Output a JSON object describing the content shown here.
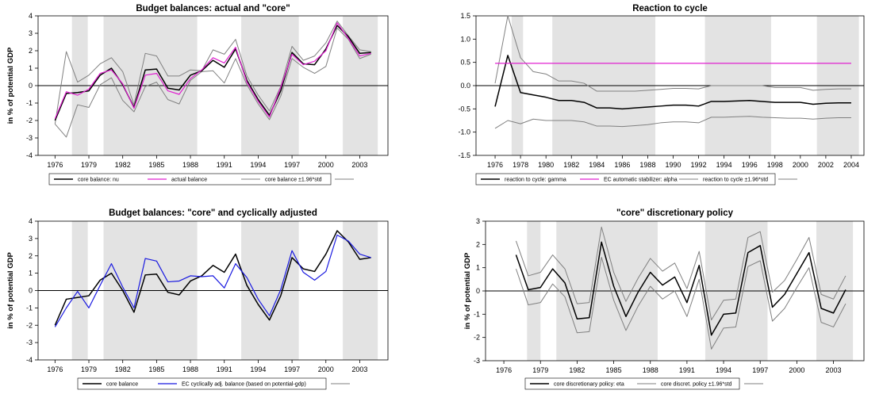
{
  "chart_data": [
    {
      "type": "line",
      "title": "Budget balances: actual and \"core\"",
      "ylabel": "in % of potential GDP",
      "xlabel": "",
      "x_ticks": [
        "1976",
        "1979",
        "1982",
        "1985",
        "1988",
        "1991",
        "1994",
        "1997",
        "2000",
        "2003"
      ],
      "y_ticks": [
        "-4",
        "-3",
        "-2",
        "-1",
        "0",
        "1",
        "2",
        "3",
        "4"
      ],
      "ylim": [
        -4,
        4
      ],
      "xlim": [
        1974.5,
        2005.5
      ],
      "grid": false,
      "shaded_periods": [
        [
          1977.5,
          1978.9
        ],
        [
          1980.3,
          1988.6
        ],
        [
          1992.5,
          1997.6
        ],
        [
          2001.5,
          2004.6
        ]
      ],
      "legend_position": "bottom",
      "legend": [
        "core balance: nu",
        "actual balance",
        "core balance ±1.96*std"
      ],
      "x": [
        1976,
        1977,
        1978,
        1979,
        1980,
        1981,
        1982,
        1983,
        1984,
        1985,
        1986,
        1987,
        1988,
        1989,
        1990,
        1991,
        1992,
        1993,
        1994,
        1995,
        1996,
        1997,
        1998,
        1999,
        2000,
        2001,
        2002,
        2003,
        2004
      ],
      "series": [
        {
          "name": "core balance: nu",
          "color": "#000000",
          "width": 1.5,
          "values": [
            -2.0,
            -0.45,
            -0.4,
            -0.3,
            0.6,
            1.0,
            0.05,
            -1.25,
            0.9,
            0.95,
            -0.15,
            -0.25,
            0.6,
            0.85,
            1.45,
            1.05,
            2.1,
            0.3,
            -0.8,
            -1.7,
            -0.3,
            1.9,
            1.25,
            1.2,
            2.1,
            3.45,
            2.8,
            1.85,
            1.9
          ]
        },
        {
          "name": "actual balance",
          "color": "#e020d0",
          "width": 1.2,
          "values": [
            -1.9,
            -0.35,
            -0.55,
            -0.2,
            0.7,
            0.9,
            0.1,
            -1.3,
            0.6,
            0.7,
            -0.3,
            -0.5,
            0.4,
            0.9,
            1.6,
            1.3,
            2.2,
            0.2,
            -0.9,
            -1.8,
            -0.1,
            1.8,
            1.2,
            1.4,
            2.0,
            3.6,
            2.7,
            1.7,
            1.85
          ]
        },
        {
          "name": "core balance ±1.96*std",
          "color": "#808080",
          "width": 1,
          "values": [
            -2.2,
            1.95,
            0.2,
            0.6,
            1.25,
            1.6,
            0.8,
            -1.1,
            1.85,
            1.7,
            0.55,
            0.55,
            0.9,
            0.85,
            2.05,
            1.8,
            2.65,
            0.55,
            -0.55,
            -1.45,
            -0.05,
            2.25,
            1.45,
            1.7,
            2.45,
            3.7,
            2.85,
            2.05,
            1.95
          ]
        },
        {
          "name": "",
          "color": "#808080",
          "width": 1,
          "values": [
            -2.2,
            -2.95,
            -1.1,
            -1.25,
            0.05,
            0.45,
            -0.85,
            -1.5,
            -0.05,
            0.2,
            -0.8,
            -1.05,
            0.3,
            0.8,
            0.85,
            0.15,
            1.55,
            0.05,
            -1.05,
            -1.95,
            -0.6,
            1.55,
            1.05,
            0.7,
            1.1,
            3.3,
            2.65,
            1.55,
            1.8
          ]
        }
      ]
    },
    {
      "type": "line",
      "title": "Reaction to cycle",
      "ylabel": "",
      "xlabel": "",
      "x_ticks": [
        "1976",
        "1978",
        "1980",
        "1982",
        "1984",
        "1986",
        "1988",
        "1990",
        "1992",
        "1994",
        "1996",
        "1998",
        "2000",
        "2002",
        "2004"
      ],
      "y_ticks": [
        "-1.5",
        "-1.0",
        "-0.5",
        "0.0",
        "0.5",
        "1.0",
        "1.5"
      ],
      "ylim": [
        -1.5,
        1.5
      ],
      "xlim": [
        1974.5,
        2005
      ],
      "grid": false,
      "shaded_periods": [
        [
          1977.3,
          1978.2
        ],
        [
          1980.5,
          1988.6
        ],
        [
          1992.5,
          1997.7
        ],
        [
          2001.3,
          2004.6
        ]
      ],
      "legend_position": "bottom",
      "legend": [
        "reaction to cycle: gamma",
        "EC automatic stabilizer: alpha",
        "reaction to cycle ±1.96*std"
      ],
      "x": [
        1976,
        1977,
        1978,
        1979,
        1980,
        1981,
        1982,
        1983,
        1984,
        1985,
        1986,
        1987,
        1988,
        1989,
        1990,
        1991,
        1992,
        1993,
        1994,
        1995,
        1996,
        1997,
        1998,
        1999,
        2000,
        2001,
        2002,
        2003,
        2004
      ],
      "series": [
        {
          "name": "reaction to cycle: gamma",
          "color": "#000000",
          "width": 1.5,
          "values": [
            -0.45,
            0.65,
            -0.15,
            -0.2,
            -0.25,
            -0.32,
            -0.32,
            -0.36,
            -0.48,
            -0.48,
            -0.5,
            -0.48,
            -0.46,
            -0.44,
            -0.42,
            -0.42,
            -0.44,
            -0.34,
            -0.34,
            -0.33,
            -0.32,
            -0.34,
            -0.36,
            -0.36,
            -0.36,
            -0.4,
            -0.38,
            -0.37,
            -0.37
          ]
        },
        {
          "name": "EC automatic stabilizer: alpha",
          "color": "#e020d0",
          "width": 1.2,
          "values": [
            0.48,
            0.48,
            0.48,
            0.48,
            0.48,
            0.48,
            0.48,
            0.48,
            0.48,
            0.48,
            0.48,
            0.48,
            0.48,
            0.48,
            0.48,
            0.48,
            0.48,
            0.48,
            0.48,
            0.48,
            0.48,
            0.48,
            0.48,
            0.48,
            0.48,
            0.48,
            0.48,
            0.48,
            0.48
          ]
        },
        {
          "name": "reaction to cycle ±1.96*std",
          "color": "#808080",
          "width": 1,
          "values": [
            0.05,
            1.5,
            0.6,
            0.3,
            0.25,
            0.1,
            0.1,
            0.05,
            -0.12,
            -0.12,
            -0.12,
            -0.12,
            -0.1,
            -0.08,
            -0.06,
            -0.06,
            -0.07,
            0.0,
            0.0,
            0.0,
            0.0,
            0.0,
            -0.04,
            -0.04,
            -0.04,
            -0.1,
            -0.08,
            -0.07,
            -0.07
          ]
        },
        {
          "name": "",
          "color": "#808080",
          "width": 1,
          "values": [
            -0.92,
            -0.75,
            -0.82,
            -0.72,
            -0.75,
            -0.75,
            -0.75,
            -0.78,
            -0.87,
            -0.87,
            -0.88,
            -0.86,
            -0.84,
            -0.8,
            -0.78,
            -0.78,
            -0.8,
            -0.68,
            -0.68,
            -0.67,
            -0.66,
            -0.68,
            -0.69,
            -0.7,
            -0.7,
            -0.72,
            -0.7,
            -0.69,
            -0.69
          ]
        }
      ]
    },
    {
      "type": "line",
      "title": "Budget balances: \"core\" and cyclically adjusted",
      "ylabel": "in % of potential GDP",
      "xlabel": "",
      "x_ticks": [
        "1976",
        "1979",
        "1982",
        "1985",
        "1988",
        "1991",
        "1994",
        "1997",
        "2000",
        "2003"
      ],
      "y_ticks": [
        "-4",
        "-3",
        "-2",
        "-1",
        "0",
        "1",
        "2",
        "3",
        "4"
      ],
      "ylim": [
        -4,
        4
      ],
      "xlim": [
        1974.5,
        2005.5
      ],
      "grid": false,
      "shaded_periods": [
        [
          1977.5,
          1978.9
        ],
        [
          1980.3,
          1988.6
        ],
        [
          1992.5,
          1997.6
        ],
        [
          2001.5,
          2004.6
        ]
      ],
      "legend_position": "bottom",
      "legend": [
        "core balance",
        "EC cyclically adj. balance (based on potential-gdp)"
      ],
      "x": [
        1976,
        1977,
        1978,
        1979,
        1980,
        1981,
        1982,
        1983,
        1984,
        1985,
        1986,
        1987,
        1988,
        1989,
        1990,
        1991,
        1992,
        1993,
        1994,
        1995,
        1996,
        1997,
        1998,
        1999,
        2000,
        2001,
        2002,
        2003,
        2004
      ],
      "series": [
        {
          "name": "core balance",
          "color": "#000000",
          "width": 1.5,
          "values": [
            -2.0,
            -0.5,
            -0.4,
            -0.3,
            0.6,
            1.0,
            0.0,
            -1.25,
            0.9,
            0.95,
            -0.1,
            -0.25,
            0.55,
            0.85,
            1.45,
            1.05,
            2.1,
            0.3,
            -0.8,
            -1.7,
            -0.3,
            1.9,
            1.25,
            1.1,
            2.1,
            3.45,
            2.8,
            1.8,
            1.9
          ]
        },
        {
          "name": "EC cyclically adj. balance (based on potential-gdp)",
          "color": "#1a1ae0",
          "width": 1.2,
          "values": [
            -2.1,
            -1.0,
            -0.05,
            -1.0,
            0.3,
            1.55,
            0.2,
            -1.0,
            1.85,
            1.7,
            0.5,
            0.55,
            0.85,
            0.8,
            0.85,
            0.15,
            1.55,
            0.75,
            -0.5,
            -1.45,
            0.05,
            2.3,
            1.05,
            0.6,
            1.1,
            3.2,
            2.85,
            2.1,
            1.9
          ]
        }
      ]
    },
    {
      "type": "line",
      "title": "\"core\" discretionary policy",
      "ylabel": "in % of potential GDP",
      "xlabel": "",
      "x_ticks": [
        "1976",
        "1979",
        "1982",
        "1985",
        "1988",
        "1991",
        "1994",
        "1997",
        "2000",
        "2003"
      ],
      "y_ticks": [
        "-3",
        "-2",
        "-1",
        "0",
        "1",
        "2",
        "3"
      ],
      "ylim": [
        -3,
        3
      ],
      "xlim": [
        1974.5,
        2005.5
      ],
      "grid": false,
      "shaded_periods": [
        [
          1977.9,
          1979.0
        ],
        [
          1980.3,
          1988.6
        ],
        [
          1992.5,
          1997.6
        ],
        [
          2001.6,
          2004.6
        ]
      ],
      "legend_position": "bottom",
      "legend": [
        "core discretionary policy: eta",
        "core discret. policy ±1.96*std"
      ],
      "x": [
        1977,
        1978,
        1979,
        1980,
        1981,
        1982,
        1983,
        1984,
        1985,
        1986,
        1987,
        1988,
        1989,
        1990,
        1991,
        1992,
        1993,
        1994,
        1995,
        1996,
        1997,
        1998,
        1999,
        2000,
        2001,
        2002,
        2003,
        2004
      ],
      "series": [
        {
          "name": "core discretionary policy: eta",
          "color": "#000000",
          "width": 1.5,
          "values": [
            1.55,
            0.05,
            0.15,
            0.95,
            0.35,
            -1.2,
            -1.15,
            2.1,
            0.2,
            -1.1,
            -0.05,
            0.8,
            0.25,
            0.6,
            -0.5,
            1.1,
            -1.9,
            -1.0,
            -0.95,
            1.65,
            1.95,
            -0.7,
            -0.15,
            0.75,
            1.65,
            -0.75,
            -0.95,
            0.05
          ]
        },
        {
          "name": "core discret. policy ±1.96*std",
          "color": "#808080",
          "width": 1,
          "values": [
            2.15,
            0.65,
            0.8,
            1.55,
            0.95,
            -0.55,
            -0.5,
            2.75,
            0.8,
            -0.45,
            0.55,
            1.4,
            0.85,
            1.2,
            0.1,
            1.7,
            -1.25,
            -0.4,
            -0.35,
            2.3,
            2.55,
            -0.05,
            0.45,
            1.35,
            2.3,
            -0.15,
            -0.35,
            0.65
          ]
        },
        {
          "name": "",
          "color": "#808080",
          "width": 1,
          "values": [
            0.95,
            -0.6,
            -0.5,
            0.3,
            -0.25,
            -1.8,
            -1.75,
            1.45,
            -0.4,
            -1.7,
            -0.65,
            0.2,
            -0.35,
            0.0,
            -1.1,
            0.5,
            -2.5,
            -1.6,
            -1.55,
            1.05,
            1.3,
            -1.3,
            -0.75,
            0.15,
            1.0,
            -1.35,
            -1.55,
            -0.55
          ]
        }
      ]
    }
  ]
}
